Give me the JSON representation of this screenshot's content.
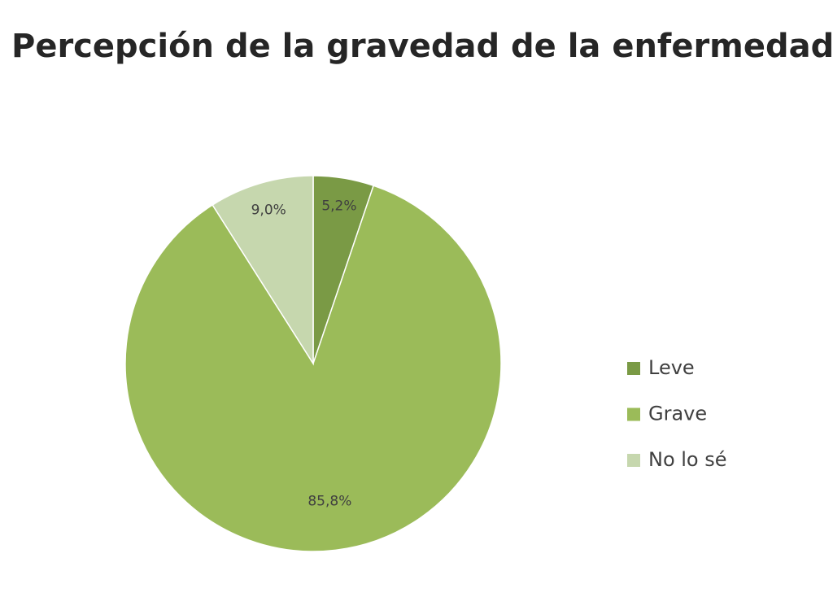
{
  "chart_data": {
    "type": "pie",
    "title": "Percepción de la gravedad de la enfermedad",
    "categories": [
      "Leve",
      "Grave",
      "No lo sé"
    ],
    "values": [
      5.2,
      85.8,
      9.0
    ],
    "value_labels": [
      "5,2%",
      "85,8%",
      "9,0%"
    ],
    "colors": [
      "#7a9a45",
      "#9bbb59",
      "#c6d7ae"
    ],
    "legend": "right"
  }
}
